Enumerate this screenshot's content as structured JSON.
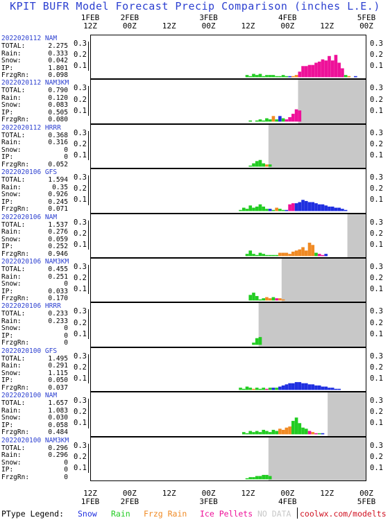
{
  "title": "KPIT BUFR Model Forecast Precip Comparison (inches L.E.)",
  "axis": {
    "ticks": [
      {
        "top": "12Z",
        "bottom": "1FEB"
      },
      {
        "top": "00Z",
        "bottom": "2FEB"
      },
      {
        "top": "12Z",
        "bottom": ""
      },
      {
        "top": "00Z",
        "bottom": "3FEB"
      },
      {
        "top": "12Z",
        "bottom": ""
      },
      {
        "top": "00Z",
        "bottom": "4FEB"
      },
      {
        "top": "12Z",
        "bottom": ""
      },
      {
        "top": "00Z",
        "bottom": "5FEB"
      }
    ]
  },
  "legend": {
    "label": "PType Legend:",
    "items": [
      {
        "name": "Snow",
        "color": "#1f2fe0"
      },
      {
        "name": "Rain",
        "color": "#22cc22"
      },
      {
        "name": "Frzg Rain",
        "color": "#f08a24"
      },
      {
        "name": "Ice Pellets",
        "color": "#ee1199"
      },
      {
        "name": "NO DATA",
        "color": "#c8c8c8"
      }
    ],
    "credit": "coolwx.com/modelts"
  },
  "stat_labels": [
    "TOTAL:",
    "Rain:",
    "Snow:",
    "IP:",
    "FrzgRn:"
  ],
  "y_ticks": [
    "0.3",
    "0.2",
    "0.1"
  ],
  "chart_data": {
    "type": "bar",
    "title": "KPIT BUFR Model Forecast Precip Comparison (inches L.E.)",
    "x_range_hours": [
      0,
      84
    ],
    "x_start": "1FEB 12Z",
    "ylim": [
      0,
      0.35
    ],
    "panels": [
      {
        "run": "2022020112 NAM",
        "total": "2.275",
        "rain": "0.333",
        "snow": "0.042",
        "ip": "1.801",
        "frzgrn": "0.098",
        "nodata_from": null,
        "bars": [
          [
            47,
            0.02,
            "rain"
          ],
          [
            48,
            0.01,
            "rain"
          ],
          [
            49,
            0.03,
            "rain"
          ],
          [
            50,
            0.02,
            "rain"
          ],
          [
            51,
            0.03,
            "rain"
          ],
          [
            52,
            0.01,
            "rain"
          ],
          [
            53,
            0.02,
            "rain"
          ],
          [
            54,
            0.02,
            "rain"
          ],
          [
            55,
            0.02,
            "rain"
          ],
          [
            56,
            0.01,
            "rain"
          ],
          [
            57,
            0.01,
            "rain"
          ],
          [
            58,
            0.02,
            "rain"
          ],
          [
            59,
            0.01,
            "rain"
          ],
          [
            60,
            0.01,
            "snow"
          ],
          [
            61,
            0.01,
            "frzg"
          ],
          [
            62,
            0.02,
            "frzg"
          ],
          [
            63,
            0.05,
            "ip"
          ],
          [
            64,
            0.1,
            "ip"
          ],
          [
            65,
            0.1,
            "ip"
          ],
          [
            66,
            0.11,
            "ip"
          ],
          [
            67,
            0.11,
            "ip"
          ],
          [
            68,
            0.13,
            "ip"
          ],
          [
            69,
            0.14,
            "ip"
          ],
          [
            70,
            0.16,
            "ip"
          ],
          [
            71,
            0.15,
            "ip"
          ],
          [
            72,
            0.19,
            "ip"
          ],
          [
            73,
            0.15,
            "ip"
          ],
          [
            74,
            0.2,
            "ip"
          ],
          [
            75,
            0.13,
            "ip"
          ],
          [
            76,
            0.08,
            "ip"
          ],
          [
            77,
            0.02,
            "rain"
          ],
          [
            78,
            0.01,
            "frzg"
          ],
          [
            80,
            0.01,
            "snow"
          ]
        ]
      },
      {
        "run": "2022020112 NAM3KM",
        "total": "0.790",
        "rain": "0.120",
        "snow": "0.083",
        "ip": "0.505",
        "frzgrn": "0.080",
        "nodata_from": 63,
        "bars": [
          [
            48,
            0.01,
            "rain"
          ],
          [
            50,
            0.01,
            "rain"
          ],
          [
            51,
            0.02,
            "rain"
          ],
          [
            52,
            0.01,
            "rain"
          ],
          [
            53,
            0.03,
            "rain"
          ],
          [
            54,
            0.02,
            "rain"
          ],
          [
            55,
            0.05,
            "frzg"
          ],
          [
            56,
            0.02,
            "rain"
          ],
          [
            57,
            0.05,
            "snow"
          ],
          [
            58,
            0.03,
            "rain"
          ],
          [
            59,
            0.02,
            "ip"
          ],
          [
            60,
            0.04,
            "ip"
          ],
          [
            61,
            0.07,
            "ip"
          ],
          [
            62,
            0.11,
            "ip"
          ],
          [
            63,
            0.1,
            "ip"
          ]
        ]
      },
      {
        "run": "2022020112 HRRR",
        "total": "0.368",
        "rain": "0.316",
        "snow": "0",
        "ip": "0",
        "frzgrn": "0.052",
        "nodata_from": 54,
        "bars": [
          [
            48,
            0.01,
            "rain"
          ],
          [
            49,
            0.03,
            "rain"
          ],
          [
            50,
            0.05,
            "rain"
          ],
          [
            51,
            0.06,
            "rain"
          ],
          [
            52,
            0.03,
            "rain"
          ],
          [
            53,
            0.02,
            "frzg"
          ],
          [
            54,
            0.02,
            "rain"
          ]
        ]
      },
      {
        "run": "2022020106 GFS",
        "total": "1.594",
        "rain": "0.35",
        "snow": "0.926",
        "ip": "0.245",
        "frzgrn": "0.071",
        "nodata_from": null,
        "bars": [
          [
            45,
            0.01,
            "rain"
          ],
          [
            46,
            0.03,
            "rain"
          ],
          [
            47,
            0.02,
            "rain"
          ],
          [
            48,
            0.05,
            "rain"
          ],
          [
            49,
            0.03,
            "rain"
          ],
          [
            50,
            0.04,
            "rain"
          ],
          [
            51,
            0.06,
            "rain"
          ],
          [
            52,
            0.04,
            "rain"
          ],
          [
            53,
            0.02,
            "rain"
          ],
          [
            54,
            0.02,
            "snow"
          ],
          [
            55,
            0.01,
            "rain"
          ],
          [
            56,
            0.03,
            "frzg"
          ],
          [
            57,
            0.02,
            "rain"
          ],
          [
            58,
            0.01,
            "rain"
          ],
          [
            59,
            0.01,
            "snow"
          ],
          [
            60,
            0.06,
            "ip"
          ],
          [
            61,
            0.07,
            "ip"
          ],
          [
            62,
            0.07,
            "snow"
          ],
          [
            63,
            0.08,
            "snow"
          ],
          [
            64,
            0.1,
            "snow"
          ],
          [
            65,
            0.09,
            "snow"
          ],
          [
            66,
            0.08,
            "snow"
          ],
          [
            67,
            0.08,
            "snow"
          ],
          [
            68,
            0.07,
            "snow"
          ],
          [
            69,
            0.06,
            "snow"
          ],
          [
            70,
            0.06,
            "snow"
          ],
          [
            71,
            0.05,
            "snow"
          ],
          [
            72,
            0.04,
            "snow"
          ],
          [
            73,
            0.04,
            "snow"
          ],
          [
            74,
            0.03,
            "snow"
          ],
          [
            75,
            0.03,
            "snow"
          ],
          [
            76,
            0.02,
            "snow"
          ],
          [
            77,
            0.01,
            "snow"
          ]
        ]
      },
      {
        "run": "2022020106 NAM",
        "total": "1.537",
        "rain": "0.276",
        "snow": "0.059",
        "ip": "0.252",
        "frzgrn": "0.946",
        "nodata_from": 78,
        "bars": [
          [
            47,
            0.02,
            "rain"
          ],
          [
            48,
            0.05,
            "rain"
          ],
          [
            49,
            0.02,
            "rain"
          ],
          [
            50,
            0.01,
            "rain"
          ],
          [
            51,
            0.03,
            "rain"
          ],
          [
            52,
            0.02,
            "rain"
          ],
          [
            53,
            0.01,
            "rain"
          ],
          [
            54,
            0.01,
            "rain"
          ],
          [
            55,
            0.01,
            "rain"
          ],
          [
            56,
            0.01,
            "rain"
          ],
          [
            57,
            0.03,
            "frzg"
          ],
          [
            58,
            0.03,
            "frzg"
          ],
          [
            59,
            0.03,
            "frzg"
          ],
          [
            60,
            0.02,
            "frzg"
          ],
          [
            61,
            0.04,
            "frzg"
          ],
          [
            62,
            0.05,
            "frzg"
          ],
          [
            63,
            0.06,
            "frzg"
          ],
          [
            64,
            0.08,
            "frzg"
          ],
          [
            65,
            0.05,
            "frzg"
          ],
          [
            66,
            0.12,
            "frzg"
          ],
          [
            67,
            0.1,
            "frzg"
          ],
          [
            68,
            0.03,
            "rain"
          ],
          [
            69,
            0.02,
            "ip"
          ],
          [
            70,
            0.01,
            "ip"
          ],
          [
            71,
            0.02,
            "snow"
          ]
        ]
      },
      {
        "run": "2022020106 NAM3KM",
        "total": "0.455",
        "rain": "0.251",
        "snow": "0",
        "ip": "0.033",
        "frzgrn": "0.170",
        "nodata_from": 58,
        "bars": [
          [
            48,
            0.05,
            "rain"
          ],
          [
            49,
            0.07,
            "rain"
          ],
          [
            50,
            0.04,
            "rain"
          ],
          [
            51,
            0.01,
            "rain"
          ],
          [
            52,
            0.02,
            "rain"
          ],
          [
            53,
            0.03,
            "frzg"
          ],
          [
            54,
            0.02,
            "frzg"
          ],
          [
            55,
            0.03,
            "rain"
          ],
          [
            56,
            0.02,
            "ip"
          ],
          [
            57,
            0.02,
            "frzg"
          ],
          [
            58,
            0.01,
            "frzg"
          ]
        ]
      },
      {
        "run": "2022020106 HRRR",
        "total": "0.233",
        "rain": "0.233",
        "snow": "0",
        "ip": "0",
        "frzgrn": "0",
        "nodata_from": 51,
        "bars": [
          [
            49,
            0.02,
            "rain"
          ],
          [
            50,
            0.06,
            "rain"
          ],
          [
            51,
            0.07,
            "rain"
          ]
        ]
      },
      {
        "run": "2022020100 GFS",
        "total": "1.495",
        "rain": "0.291",
        "snow": "1.115",
        "ip": "0.050",
        "frzgrn": "0.037",
        "nodata_from": null,
        "bars": [
          [
            45,
            0.02,
            "rain"
          ],
          [
            46,
            0.01,
            "rain"
          ],
          [
            47,
            0.03,
            "rain"
          ],
          [
            48,
            0.02,
            "rain"
          ],
          [
            49,
            0.01,
            "frzg"
          ],
          [
            50,
            0.02,
            "rain"
          ],
          [
            51,
            0.01,
            "rain"
          ],
          [
            52,
            0.02,
            "rain"
          ],
          [
            53,
            0.01,
            "ip"
          ],
          [
            54,
            0.02,
            "rain"
          ],
          [
            55,
            0.02,
            "snow"
          ],
          [
            56,
            0.02,
            "rain"
          ],
          [
            57,
            0.03,
            "snow"
          ],
          [
            58,
            0.04,
            "snow"
          ],
          [
            59,
            0.05,
            "snow"
          ],
          [
            60,
            0.06,
            "snow"
          ],
          [
            61,
            0.06,
            "snow"
          ],
          [
            62,
            0.07,
            "snow"
          ],
          [
            63,
            0.07,
            "snow"
          ],
          [
            64,
            0.06,
            "snow"
          ],
          [
            65,
            0.06,
            "snow"
          ],
          [
            66,
            0.05,
            "snow"
          ],
          [
            67,
            0.05,
            "snow"
          ],
          [
            68,
            0.04,
            "snow"
          ],
          [
            69,
            0.04,
            "snow"
          ],
          [
            70,
            0.03,
            "snow"
          ],
          [
            71,
            0.03,
            "snow"
          ],
          [
            72,
            0.02,
            "snow"
          ],
          [
            73,
            0.02,
            "snow"
          ],
          [
            74,
            0.01,
            "snow"
          ],
          [
            75,
            0.01,
            "snow"
          ]
        ]
      },
      {
        "run": "2022020100 NAM",
        "total": "1.657",
        "rain": "1.083",
        "snow": "0.030",
        "ip": "0.058",
        "frzgrn": "0.484",
        "nodata_from": 72,
        "bars": [
          [
            46,
            0.02,
            "rain"
          ],
          [
            47,
            0.01,
            "rain"
          ],
          [
            48,
            0.03,
            "rain"
          ],
          [
            49,
            0.02,
            "rain"
          ],
          [
            50,
            0.03,
            "rain"
          ],
          [
            51,
            0.02,
            "rain"
          ],
          [
            52,
            0.04,
            "rain"
          ],
          [
            53,
            0.03,
            "rain"
          ],
          [
            54,
            0.02,
            "rain"
          ],
          [
            55,
            0.04,
            "rain"
          ],
          [
            56,
            0.03,
            "rain"
          ],
          [
            57,
            0.05,
            "frzg"
          ],
          [
            58,
            0.04,
            "frzg"
          ],
          [
            59,
            0.06,
            "frzg"
          ],
          [
            60,
            0.07,
            "frzg"
          ],
          [
            61,
            0.12,
            "rain"
          ],
          [
            62,
            0.15,
            "rain"
          ],
          [
            63,
            0.1,
            "rain"
          ],
          [
            64,
            0.06,
            "rain"
          ],
          [
            65,
            0.05,
            "rain"
          ],
          [
            66,
            0.03,
            "ip"
          ],
          [
            67,
            0.02,
            "frzg"
          ],
          [
            68,
            0.01,
            "ip"
          ],
          [
            69,
            0.01,
            "rain"
          ],
          [
            70,
            0.01,
            "snow"
          ]
        ]
      },
      {
        "run": "2022020100 NAM3KM",
        "total": "0.296",
        "rain": "0.296",
        "snow": "0",
        "ip": "0",
        "frzgrn": "0",
        "nodata_from": 54,
        "bars": [
          [
            47,
            0.01,
            "rain"
          ],
          [
            48,
            0.02,
            "rain"
          ],
          [
            49,
            0.02,
            "rain"
          ],
          [
            50,
            0.03,
            "rain"
          ],
          [
            51,
            0.03,
            "rain"
          ],
          [
            52,
            0.04,
            "rain"
          ],
          [
            53,
            0.04,
            "rain"
          ],
          [
            54,
            0.03,
            "rain"
          ]
        ]
      }
    ]
  }
}
